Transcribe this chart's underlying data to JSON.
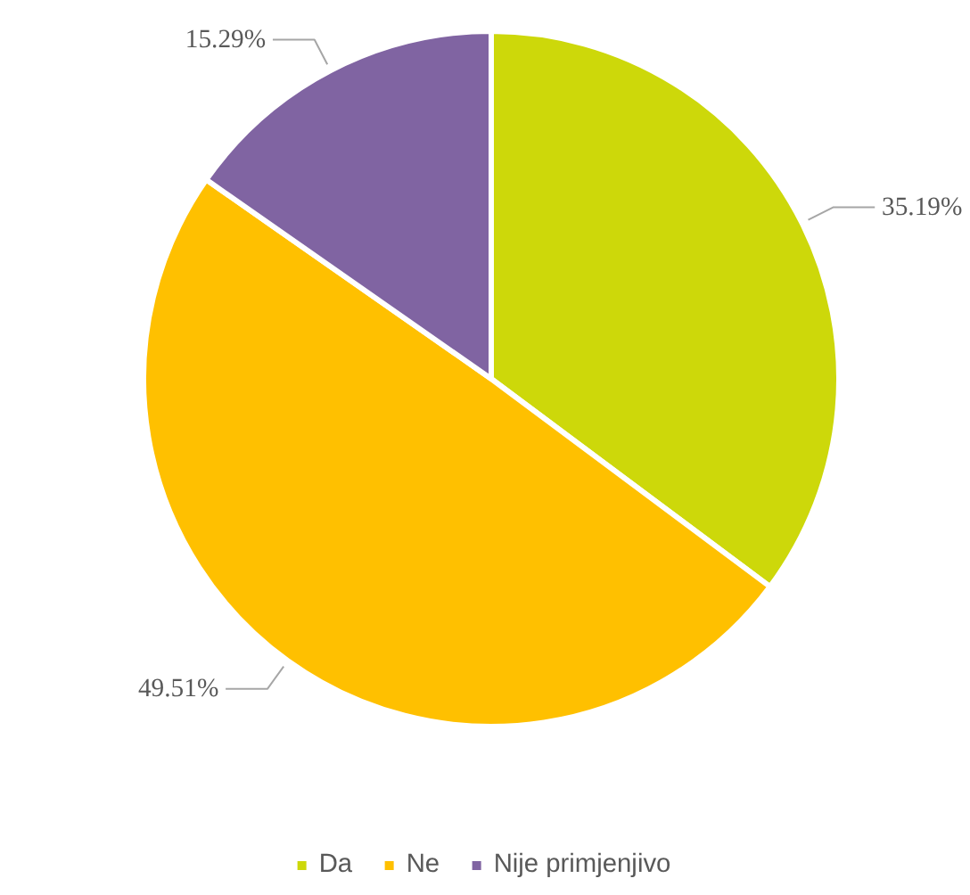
{
  "chart_data": {
    "type": "pie",
    "categories": [
      "Da",
      "Ne",
      "Nije primjenjivo"
    ],
    "values": [
      35.19,
      49.51,
      15.29
    ],
    "colors": [
      "#cdd80a",
      "#ffc000",
      "#8064a2"
    ],
    "value_labels": [
      "35.19%",
      "49.51%",
      "15.29%"
    ],
    "legend": "bottom"
  }
}
